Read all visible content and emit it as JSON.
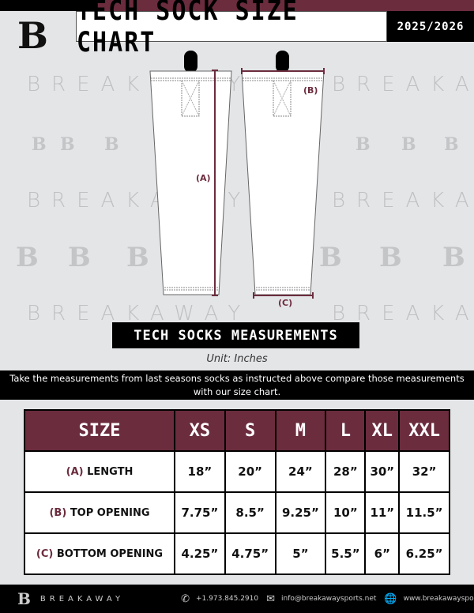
{
  "header": {
    "title": "TECH SOCK SIZE CHART",
    "season": "2025/2026",
    "logo": "B"
  },
  "watermark": {
    "text": "BREAKAWAY",
    "logo": "B"
  },
  "diagram": {
    "label_a": "(A)",
    "label_b": "(B)",
    "label_c": "(C)",
    "accent": "#6b2c3e"
  },
  "section_title": "TECH SOCKS MEASUREMENTS",
  "unit": "Unit: Inches",
  "instructions": "Take the measurements from last seasons socks as instructed above compare those measurements  with our size chart.",
  "table": {
    "headers": [
      "SIZE",
      "XS",
      "S",
      "M",
      "L",
      "XL",
      "XXL"
    ],
    "rows": [
      {
        "code": "(A)",
        "label": "LENGTH",
        "values": [
          "18”",
          "20”",
          "24”",
          "28”",
          "30”",
          "32”"
        ]
      },
      {
        "code": "(B)",
        "label": "TOP OPENING",
        "values": [
          "7.75”",
          "8.5”",
          "9.25”",
          "10”",
          "11”",
          "11.5”"
        ]
      },
      {
        "code": "(C)",
        "label": "BOTTOM OPENING",
        "values": [
          "4.25”",
          "4.75”",
          "5”",
          "5.5”",
          "6”",
          "6.25”"
        ]
      }
    ]
  },
  "footer": {
    "brand": "BREAKAWAY",
    "phone": "+1.973.845.2910",
    "email": "info@breakawaysports.net",
    "website": "www.breakawaysports.net"
  }
}
